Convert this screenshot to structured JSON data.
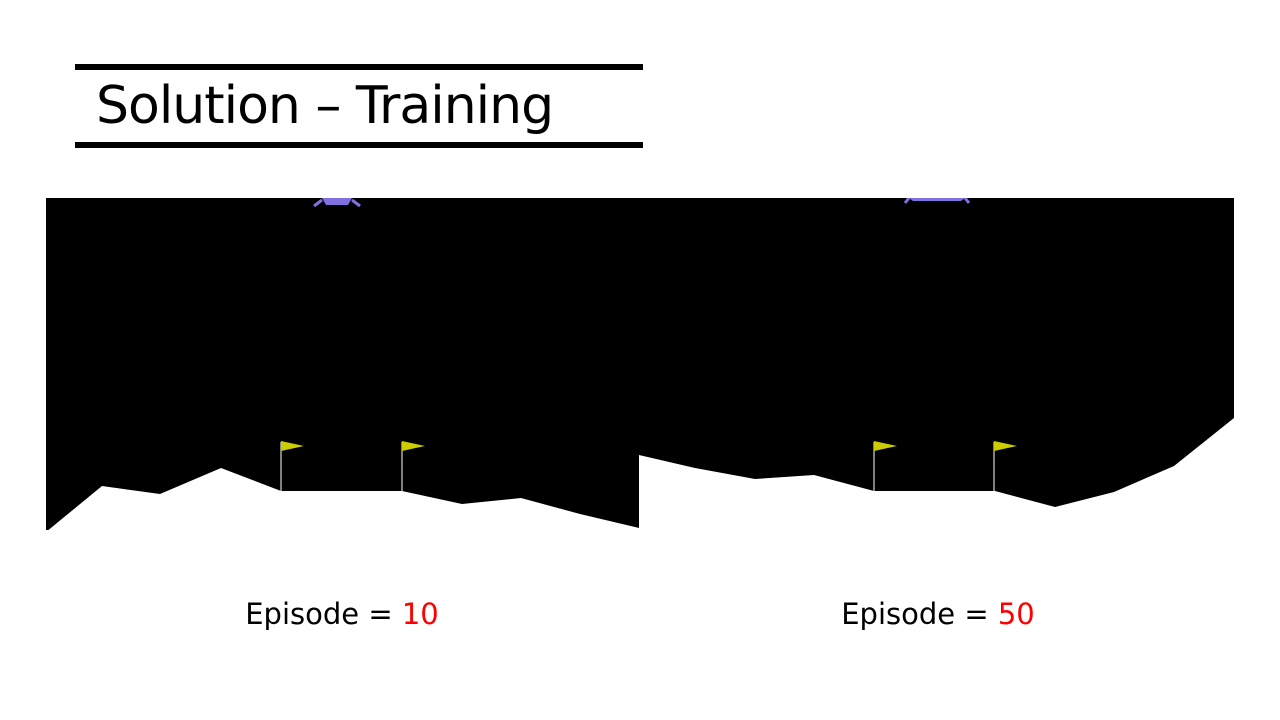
{
  "slide": {
    "title": "Solution – Training"
  },
  "panels": [
    {
      "caption_label": "Episode =",
      "caption_value": "10"
    },
    {
      "caption_label": "Episode =",
      "caption_value": "50"
    }
  ],
  "colors": {
    "sky": "#000000",
    "terrain": "#ffffff",
    "flag": "#cccc00",
    "lander": "#8070e0",
    "episode_value": "#ff0000"
  },
  "icons": {
    "flag": "flag-icon",
    "lander": "lander-icon"
  }
}
